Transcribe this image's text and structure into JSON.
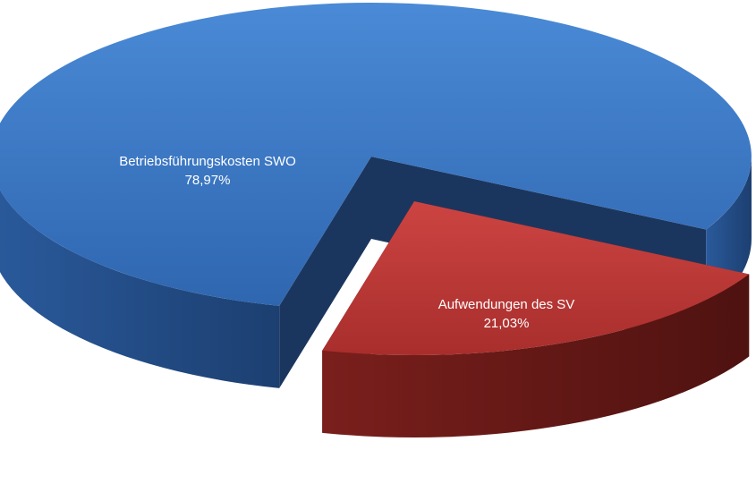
{
  "chart_data": {
    "type": "pie3d",
    "categories": [
      "Betriebsführungskosten SWO",
      "Aufwendungen des SV"
    ],
    "values": [
      78.97,
      21.03
    ],
    "value_labels": [
      "78,97%",
      "21,03%"
    ],
    "colors": [
      "#3a78c3",
      "#c0393b"
    ]
  }
}
